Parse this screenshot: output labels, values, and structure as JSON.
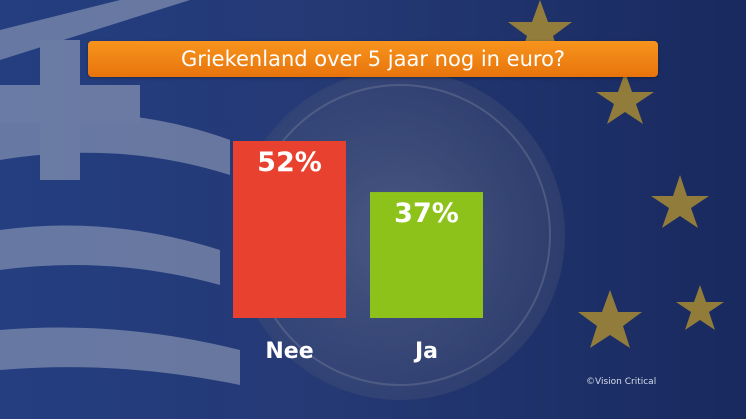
{
  "title": "Griekenland over 5 jaar nog in euro?",
  "copyright": "©Vision Critical",
  "colors": {
    "title_bg": "#f28a1a",
    "bar_nee": "#e8412f",
    "bar_ja": "#8cc21a",
    "text": "#ffffff"
  },
  "chart_data": {
    "type": "bar",
    "title": "Griekenland over 5 jaar nog in euro?",
    "categories": [
      "Nee",
      "Ja"
    ],
    "values": [
      52,
      37
    ],
    "value_labels": [
      "52%",
      "37%"
    ],
    "unit": "%",
    "ylim": [
      0,
      60
    ],
    "grid": false,
    "legend": "none"
  }
}
